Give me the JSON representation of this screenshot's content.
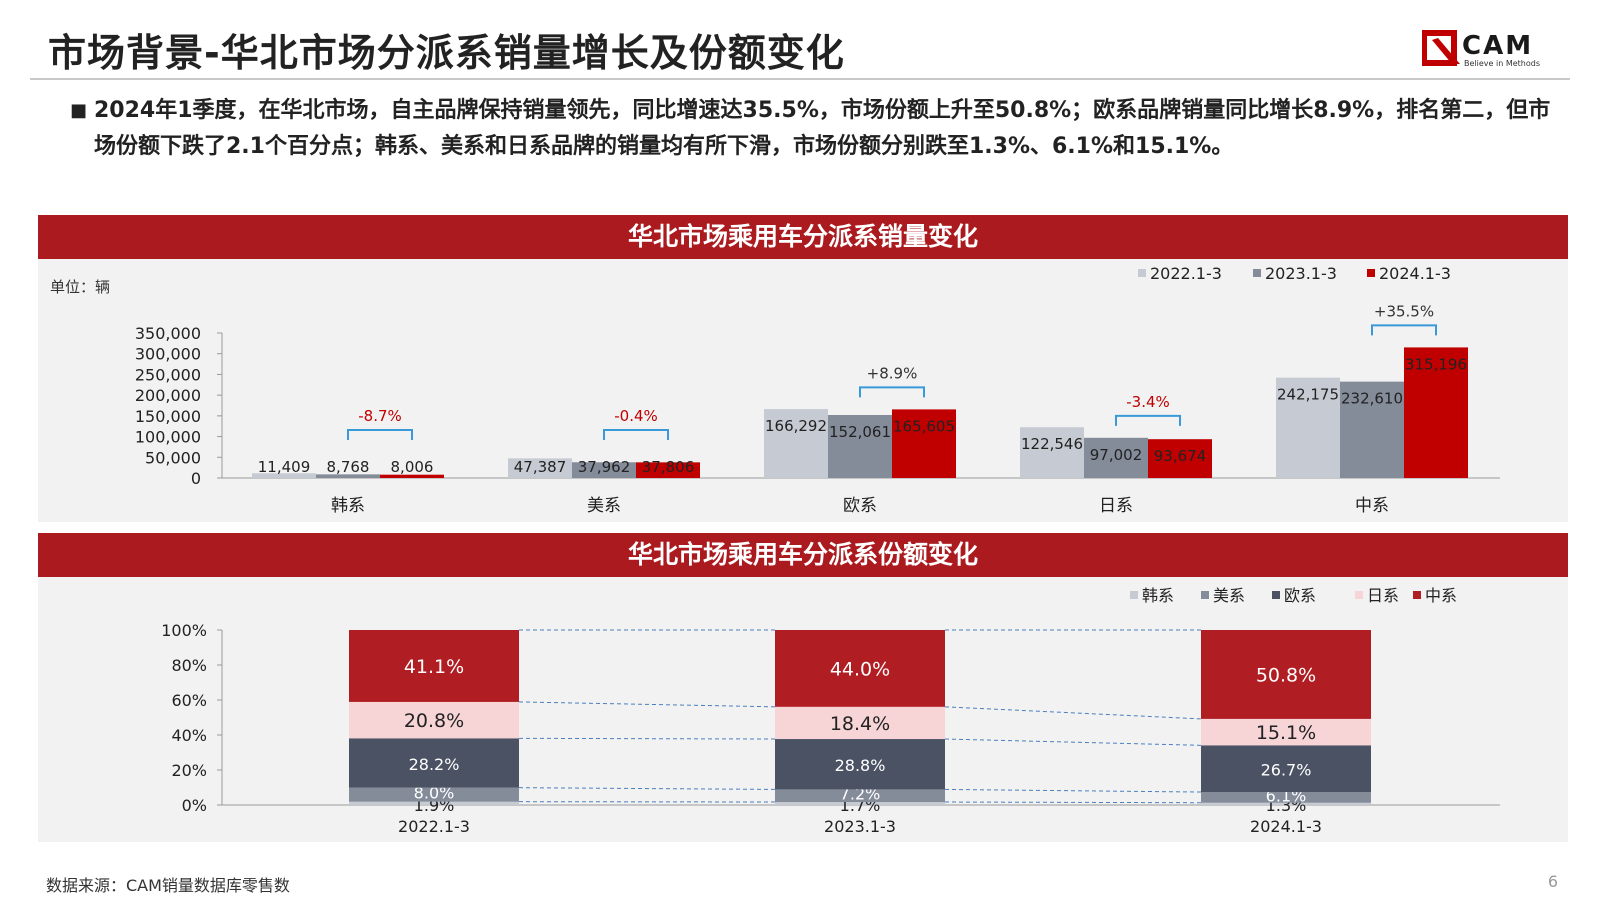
{
  "header": {
    "title": "市场背景-华北市场分派系销量增长及份额变化",
    "logo_text": "CAM",
    "logo_tagline": "Believe in Methods"
  },
  "summary": {
    "bullet": "■",
    "text": "2024年1季度，在华北市场，自主品牌保持销量领先，同比增速达35.5%，市场份额上升至50.8%；欧系品牌销量同比增长8.9%，排名第二，但市场份额下跌了2.1个百分点；韩系、美系和日系品牌的销量均有所下滑，市场份额分别跌至1.3%、6.1%和15.1%。"
  },
  "chart1": {
    "band_title": "华北市场乘用车分派系销量变化",
    "unit_label": "单位：辆"
  },
  "chart2": {
    "band_title": "华北市场乘用车分派系份额变化"
  },
  "footer": {
    "source": "数据来源：CAM销量数据库零售数",
    "page_number": "6"
  },
  "colors": {
    "brand_red": "#ab1a1f",
    "s2022": "#c6cbd3",
    "s2023": "#848b99",
    "s2024": "#c00000",
    "korean": "#c6cbd3",
    "american": "#848b99",
    "european": "#4a5263",
    "japanese": "#f7d4d6",
    "chinese": "#b01d22",
    "bracket": "#3a9ad9",
    "growth_neg": "#c00000",
    "growth_pos": "#333333"
  },
  "chart_data": [
    {
      "type": "bar",
      "title": "华北市场乘用车分派系销量变化",
      "ylabel": "单位：辆",
      "categories": [
        "韩系",
        "美系",
        "欧系",
        "日系",
        "中系"
      ],
      "series": [
        {
          "name": "2022.1-3",
          "values": [
            11409,
            47387,
            166292,
            122546,
            242175
          ]
        },
        {
          "name": "2023.1-3",
          "values": [
            8768,
            37962,
            152061,
            97002,
            232610
          ]
        },
        {
          "name": "2024.1-3",
          "values": [
            8006,
            37806,
            165605,
            93674,
            315196
          ]
        }
      ],
      "value_labels": [
        [
          "11,409",
          "47,387",
          "166,292",
          "122,546",
          "242,175"
        ],
        [
          "8,768",
          "37,962",
          "152,061",
          "97,002",
          "232,610"
        ],
        [
          "8,006",
          "37,806",
          "165,605",
          "93,674",
          "315,196"
        ]
      ],
      "growth_labels": [
        "-8.7%",
        "-0.4%",
        "+8.9%",
        "-3.4%",
        "+35.5%"
      ],
      "yticks": [
        "0",
        "50,000",
        "100,000",
        "150,000",
        "200,000",
        "250,000",
        "300,000",
        "350,000"
      ],
      "ylim": [
        0,
        350000
      ],
      "legend_position": "top-right"
    },
    {
      "type": "bar",
      "stacked": true,
      "title": "华北市场乘用车分派系份额变化",
      "categories": [
        "2022.1-3",
        "2023.1-3",
        "2024.1-3"
      ],
      "series": [
        {
          "name": "韩系",
          "values": [
            1.9,
            1.7,
            1.3
          ],
          "labels": [
            "1.9%",
            "1.7%",
            "1.3%"
          ]
        },
        {
          "name": "美系",
          "values": [
            8.0,
            7.2,
            6.1
          ],
          "labels": [
            "8.0%",
            "7.2%",
            "6.1%"
          ]
        },
        {
          "name": "欧系",
          "values": [
            28.2,
            28.8,
            26.7
          ],
          "labels": [
            "28.2%",
            "28.8%",
            "26.7%"
          ]
        },
        {
          "name": "日系",
          "values": [
            20.8,
            18.4,
            15.1
          ],
          "labels": [
            "20.8%",
            "18.4%",
            "15.1%"
          ]
        },
        {
          "name": "中系",
          "values": [
            41.1,
            44.0,
            50.8
          ],
          "labels": [
            "41.1%",
            "44.0%",
            "50.8%"
          ]
        }
      ],
      "yticks": [
        "0%",
        "20%",
        "40%",
        "60%",
        "80%",
        "100%"
      ],
      "ylim": [
        0,
        100
      ],
      "legend_position": "top-right"
    }
  ]
}
